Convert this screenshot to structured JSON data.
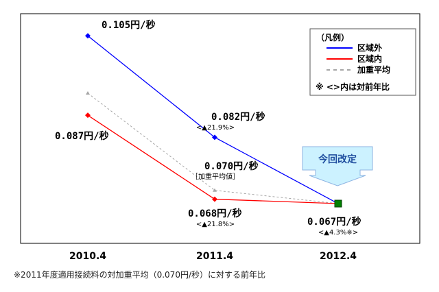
{
  "chart_data": {
    "type": "line",
    "categories": [
      "2010.4",
      "2011.4",
      "2012.4"
    ],
    "ylim": [
      0.058,
      0.11
    ],
    "grid": false,
    "legend_placement": "top-right",
    "legend": {
      "title": "（凡例）",
      "note": "※ <>内は対前年比"
    },
    "series": [
      {
        "name": "区域外",
        "values": [
          0.105,
          0.082,
          0.067
        ],
        "color": "#0000ff",
        "style": "solid"
      },
      {
        "name": "区域内",
        "values": [
          0.087,
          0.068,
          0.067
        ],
        "color": "#ff0000",
        "style": "solid"
      },
      {
        "name": "加重平均",
        "values": [
          0.092,
          0.07,
          0.067
        ],
        "color": "#a6a6a6",
        "style": "dashed"
      }
    ],
    "annotations": [
      {
        "text": "0.105円/秒"
      },
      {
        "text": "0.087円/秒"
      },
      {
        "text": "0.082円/秒",
        "sub": "<▲21.9%>"
      },
      {
        "text": "0.070円/秒",
        "sub": "［加重平均値］"
      },
      {
        "text": "0.068円/秒",
        "sub": "<▲21.8%>"
      },
      {
        "text": "0.067円/秒",
        "sub": "<▲4.3%※>"
      }
    ],
    "callout": {
      "text": "今回改定",
      "fill": "#ccf2ff",
      "border": "#8db3e2"
    },
    "final_marker_color": "#008000"
  },
  "footnote": "※2011年度適用接続料の対加重平均（0.070円/秒）に対する前年比"
}
